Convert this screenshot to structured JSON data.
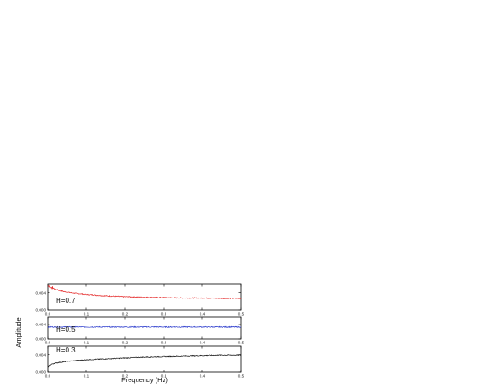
{
  "chart_data": {
    "type": "line",
    "xlabel": "Frequency (Hz)",
    "ylabel": "Amplitude",
    "xlim": [
      0.0,
      0.5
    ],
    "x_ticks": [
      "0.0",
      "0.1",
      "0.2",
      "0.3",
      "0.4",
      "0.5"
    ],
    "panels": [
      {
        "label": "H=0.7",
        "color": "#e53030",
        "ylim": [
          0.0,
          0.006
        ],
        "y_ticks": [
          "0.000",
          "0.004"
        ],
        "x": [
          0.0,
          0.01,
          0.02,
          0.04,
          0.06,
          0.1,
          0.15,
          0.2,
          0.25,
          0.3,
          0.35,
          0.4,
          0.45,
          0.5
        ],
        "values": [
          0.0058,
          0.0053,
          0.0048,
          0.0043,
          0.004,
          0.0036,
          0.0033,
          0.0031,
          0.003,
          0.0029,
          0.0028,
          0.0028,
          0.0027,
          0.0027
        ]
      },
      {
        "label": "H=0.5",
        "color": "#2a3acc",
        "ylim": [
          0.0,
          0.006
        ],
        "y_ticks": [
          "0.000",
          "0.004"
        ],
        "x": [
          0.0,
          0.1,
          0.2,
          0.3,
          0.4,
          0.5
        ],
        "values": [
          0.0033,
          0.0033,
          0.0033,
          0.0033,
          0.0033,
          0.0033
        ]
      },
      {
        "label": "H=0.3",
        "color": "#111111",
        "ylim": [
          0.0,
          0.006
        ],
        "y_ticks": [
          "0.000",
          "0.004"
        ],
        "x": [
          0.0,
          0.01,
          0.02,
          0.05,
          0.1,
          0.15,
          0.2,
          0.25,
          0.3,
          0.35,
          0.4,
          0.45,
          0.5
        ],
        "values": [
          0.0014,
          0.0018,
          0.0021,
          0.0025,
          0.0029,
          0.0031,
          0.0033,
          0.0035,
          0.0036,
          0.0037,
          0.0038,
          0.0039,
          0.0039
        ]
      }
    ]
  }
}
